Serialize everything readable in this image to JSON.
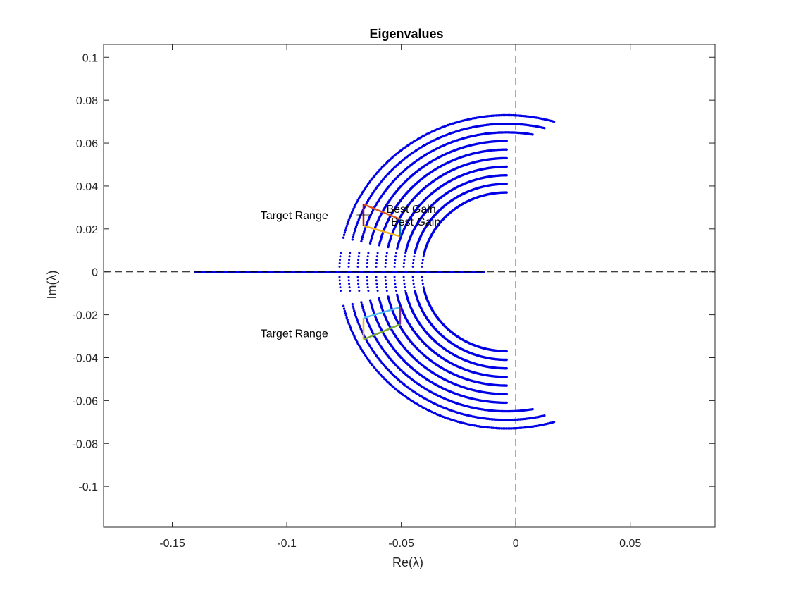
{
  "chart_data": {
    "type": "scatter",
    "title": "Eigenvalues",
    "xlabel": "Re(λ)",
    "ylabel": "Im(λ)",
    "xlim": [
      -0.18,
      0.087
    ],
    "ylim": [
      -0.119,
      0.106
    ],
    "xticks": [
      -0.15,
      -0.1,
      -0.05,
      0,
      0.05
    ],
    "xtick_labels": [
      "-0.15",
      "-0.1",
      "-0.05",
      "0",
      "0.05"
    ],
    "yticks": [
      -0.1,
      -0.08,
      -0.06,
      -0.04,
      -0.02,
      0,
      0.02,
      0.04,
      0.06,
      0.08,
      0.1
    ],
    "ytick_labels": [
      "-0.1",
      "-0.08",
      "-0.06",
      "-0.04",
      "-0.02",
      "0",
      "0.02",
      "0.04",
      "0.06",
      "0.08",
      "0.1"
    ],
    "grid": false,
    "marker_color": "#0000e6",
    "real_axis_points": {
      "x_min": -0.14,
      "x_max": -0.014,
      "y": 0
    },
    "arc_family": {
      "description_center": [
        -0.004,
        0
      ],
      "arcs": [
        {
          "radius": 0.037,
          "end_y": 0.041
        },
        {
          "radius": 0.041,
          "end_y": 0.045
        },
        {
          "radius": 0.045,
          "end_y": 0.0485
        },
        {
          "radius": 0.049,
          "end_y": 0.052
        },
        {
          "radius": 0.053,
          "end_y": 0.055
        },
        {
          "radius": 0.057,
          "end_y": 0.058
        },
        {
          "radius": 0.061,
          "end_y": 0.061
        },
        {
          "radius": 0.065,
          "end_y": 0.064
        },
        {
          "radius": 0.069,
          "end_y": 0.067
        },
        {
          "radius": 0.073,
          "end_y": 0.07
        }
      ],
      "extra_arcs_end_y": [
        0.073,
        0.076
      ]
    },
    "reference_lines": [
      {
        "orientation": "vertical",
        "x": 0,
        "style": "dashed"
      },
      {
        "orientation": "horizontal",
        "y": 0,
        "style": "dashed"
      }
    ],
    "target_ranges": [
      {
        "label": "Target Range",
        "label_at": [
          -0.1115,
          0.0265
        ],
        "edges": [
          {
            "from": [
              -0.0665,
              0.0315
            ],
            "to": [
              -0.0505,
              0.0245
            ],
            "color": "#d95319"
          },
          {
            "from": [
              -0.0665,
              0.0215
            ],
            "to": [
              -0.0505,
              0.0165
            ],
            "color": "#edb120"
          },
          {
            "from": [
              -0.0665,
              0.0215
            ],
            "to": [
              -0.0665,
              0.0315
            ],
            "color": "#a2142f"
          },
          {
            "from": [
              -0.0505,
              0.0165
            ],
            "to": [
              -0.0505,
              0.0245
            ],
            "color": "#0072bd"
          }
        ]
      },
      {
        "label": "Target Range",
        "label_at": [
          -0.1115,
          -0.0285
        ],
        "edges": [
          {
            "from": [
              -0.0665,
              -0.0215
            ],
            "to": [
              -0.0505,
              -0.0165
            ],
            "color": "#4dbeee"
          },
          {
            "from": [
              -0.0665,
              -0.0315
            ],
            "to": [
              -0.0505,
              -0.0245
            ],
            "color": "#77ac30"
          },
          {
            "from": [
              -0.0665,
              -0.0315
            ],
            "to": [
              -0.0665,
              -0.0215
            ],
            "color": "#edb120"
          },
          {
            "from": [
              -0.0505,
              -0.0245
            ],
            "to": [
              -0.0505,
              -0.0165
            ],
            "color": "#7e2f8e"
          }
        ]
      }
    ],
    "annotations": [
      {
        "text": "Best Gain",
        "at": [
          -0.0565,
          0.0295
        ]
      },
      {
        "text": "Best Gain",
        "at": [
          -0.0545,
          0.0235
        ]
      }
    ],
    "annotation_leaders": [
      {
        "from": [
          -0.0695,
          0.0265
        ],
        "to": [
          -0.0635,
          0.0265
        ]
      },
      {
        "from": [
          -0.0695,
          -0.0285
        ],
        "to": [
          -0.0635,
          -0.0285
        ]
      }
    ]
  }
}
